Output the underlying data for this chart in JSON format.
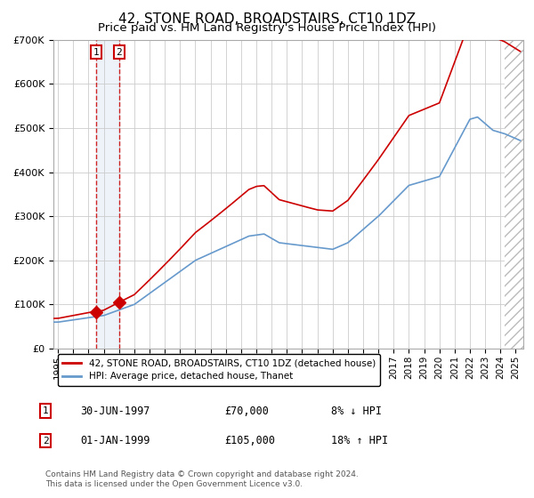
{
  "title": "42, STONE ROAD, BROADSTAIRS, CT10 1DZ",
  "subtitle": "Price paid vs. HM Land Registry's House Price Index (HPI)",
  "ylim": [
    0,
    700000
  ],
  "yticks": [
    0,
    100000,
    200000,
    300000,
    400000,
    500000,
    600000,
    700000
  ],
  "xlim_start": 1994.7,
  "xlim_end": 2025.5,
  "title_fontsize": 11,
  "subtitle_fontsize": 9.5,
  "legend_label_red": "42, STONE ROAD, BROADSTAIRS, CT10 1DZ (detached house)",
  "legend_label_blue": "HPI: Average price, detached house, Thanet",
  "transaction1_date": 1997.5,
  "transaction1_price": 70000,
  "transaction1_text": "30-JUN-1997",
  "transaction1_amount": "£70,000",
  "transaction1_hpi": "8% ↓ HPI",
  "transaction2_date": 1999.0,
  "transaction2_price": 105000,
  "transaction2_text": "01-JAN-1999",
  "transaction2_amount": "£105,000",
  "transaction2_hpi": "18% ↑ HPI",
  "hatch_start": 2024.25,
  "footer": "Contains HM Land Registry data © Crown copyright and database right 2024.\nThis data is licensed under the Open Government Licence v3.0.",
  "line_color_red": "#cc0000",
  "line_color_blue": "#6699cc",
  "bg_color": "#ffffff",
  "grid_color": "#cccccc",
  "highlight_color": "#ccddef"
}
